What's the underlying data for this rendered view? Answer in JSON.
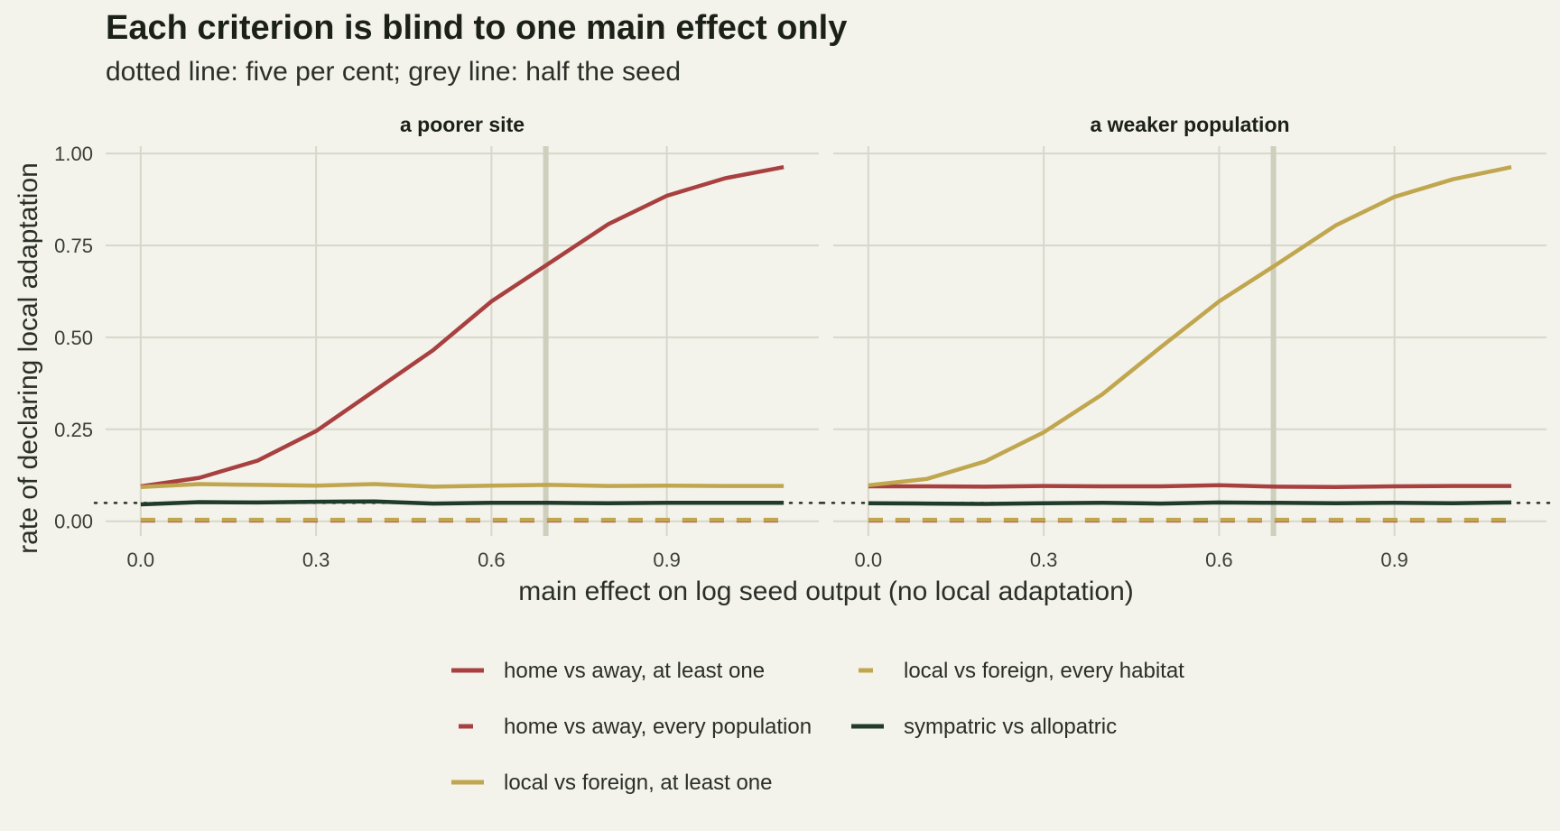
{
  "chart_data": {
    "type": "line",
    "title": "Each criterion is blind to one main effect only",
    "subtitle": "dotted line: five per cent; grey line: half the seed",
    "xlabel": "main effect on log seed output (no local adaptation)",
    "ylabel": "rate of declaring local adaptation",
    "xlim": [
      -0.06,
      1.16
    ],
    "ylim": [
      -0.04,
      1.02
    ],
    "x_ticks": [
      0.0,
      0.3,
      0.6,
      0.9
    ],
    "x_tick_labels": [
      "0.0",
      "0.3",
      "0.6",
      "0.9"
    ],
    "y_ticks": [
      0.0,
      0.25,
      0.5,
      0.75,
      1.0
    ],
    "y_tick_labels": [
      "0.00",
      "0.25",
      "0.50",
      "0.75",
      "1.00"
    ],
    "reference_lines": {
      "five_per_cent_y": 0.05,
      "half_seed_x": 0.693
    },
    "colors": {
      "red": "#a84040",
      "gold": "#c0a64e",
      "green": "#203a2b",
      "grey_ref": "#cfcfbd",
      "dotted": "#2a2f28"
    },
    "x": [
      0.0,
      0.1,
      0.2,
      0.3,
      0.4,
      0.5,
      0.6,
      0.7,
      0.8,
      0.9,
      1.0,
      1.1
    ],
    "series_styles": [
      {
        "key": "home_any",
        "color": "#a84040",
        "dash": "solid"
      },
      {
        "key": "home_every",
        "color": "#a84040",
        "dash": "dashed"
      },
      {
        "key": "local_any",
        "color": "#c0a64e",
        "dash": "solid"
      },
      {
        "key": "local_every",
        "color": "#c0a64e",
        "dash": "dashed"
      },
      {
        "key": "sym_allo",
        "color": "#203a2b",
        "dash": "solid"
      }
    ],
    "panels": [
      {
        "title": "a poorer site",
        "series": [
          {
            "key": "home_any",
            "values": [
              0.095,
              0.118,
              0.165,
              0.245,
              0.355,
              0.465,
              0.598,
              0.703,
              0.808,
              0.885,
              0.933,
              0.963
            ]
          },
          {
            "key": "home_every",
            "values": [
              0.002,
              0.002,
              0.002,
              0.002,
              0.002,
              0.002,
              0.002,
              0.002,
              0.002,
              0.002,
              0.002,
              0.002
            ]
          },
          {
            "key": "local_any",
            "values": [
              0.093,
              0.101,
              0.099,
              0.097,
              0.101,
              0.094,
              0.097,
              0.099,
              0.096,
              0.097,
              0.096,
              0.096
            ]
          },
          {
            "key": "local_every",
            "values": [
              0.004,
              0.004,
              0.004,
              0.004,
              0.004,
              0.004,
              0.004,
              0.004,
              0.004,
              0.004,
              0.004,
              0.004
            ]
          },
          {
            "key": "sym_allo",
            "values": [
              0.046,
              0.052,
              0.051,
              0.053,
              0.054,
              0.048,
              0.05,
              0.05,
              0.049,
              0.05,
              0.05,
              0.05
            ]
          }
        ]
      },
      {
        "title": "a weaker population",
        "series": [
          {
            "key": "home_any",
            "values": [
              0.095,
              0.095,
              0.094,
              0.096,
              0.095,
              0.095,
              0.098,
              0.094,
              0.093,
              0.095,
              0.096,
              0.096
            ]
          },
          {
            "key": "home_every",
            "values": [
              0.002,
              0.002,
              0.002,
              0.002,
              0.002,
              0.002,
              0.002,
              0.002,
              0.002,
              0.002,
              0.002,
              0.002
            ]
          },
          {
            "key": "local_any",
            "values": [
              0.098,
              0.115,
              0.163,
              0.242,
              0.345,
              0.473,
              0.598,
              0.7,
              0.805,
              0.882,
              0.93,
              0.963
            ]
          },
          {
            "key": "local_every",
            "values": [
              0.004,
              0.004,
              0.004,
              0.004,
              0.004,
              0.004,
              0.004,
              0.004,
              0.004,
              0.004,
              0.004,
              0.004
            ]
          },
          {
            "key": "sym_allo",
            "values": [
              0.049,
              0.048,
              0.047,
              0.049,
              0.05,
              0.048,
              0.051,
              0.05,
              0.049,
              0.05,
              0.049,
              0.051
            ]
          }
        ]
      }
    ],
    "legend": {
      "placement": "bottom",
      "entries": [
        {
          "key": "home_any",
          "label": "home vs away, at least one"
        },
        {
          "key": "home_every",
          "label": "home vs away, every population"
        },
        {
          "key": "local_any",
          "label": "local vs foreign, at least one"
        },
        {
          "key": "local_every",
          "label": "local vs foreign, every habitat"
        },
        {
          "key": "sym_allo",
          "label": "sympatric vs allopatric"
        }
      ]
    }
  }
}
